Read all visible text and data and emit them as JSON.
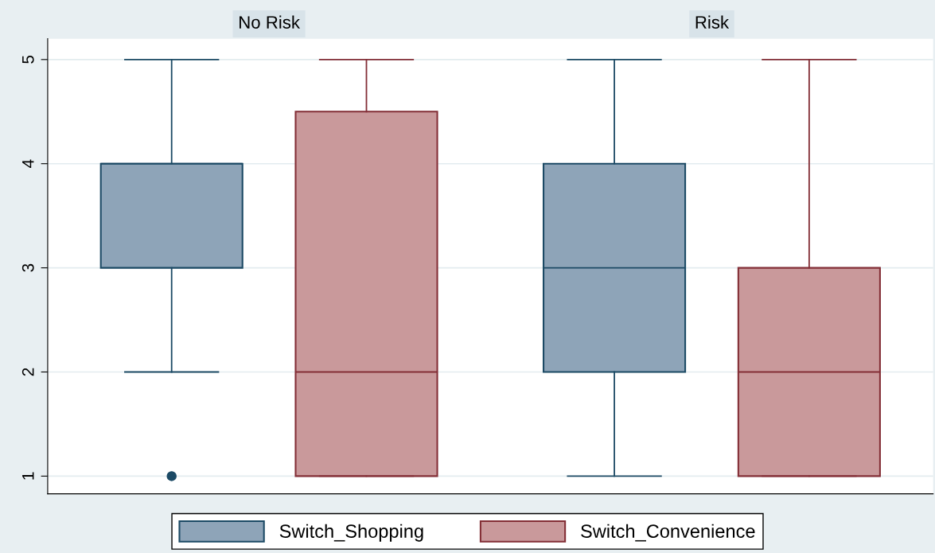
{
  "chart_data": {
    "type": "box",
    "categories": [
      "No Risk",
      "Risk"
    ],
    "ylim": [
      0.83,
      5.2
    ],
    "yticks": [
      1,
      2,
      3,
      4,
      5
    ],
    "grid": "y",
    "legend": "bottom",
    "series": [
      {
        "name": "Switch_Shopping",
        "color": "#8ea4b8",
        "boxes": [
          {
            "low": 2,
            "q1": 3,
            "median": 4,
            "q3": 4,
            "high": 5,
            "outliers": [
              1
            ]
          },
          {
            "low": 1,
            "q1": 2,
            "median": 3,
            "q3": 4,
            "high": 5
          }
        ]
      },
      {
        "name": "Switch_Convenience",
        "color": "#c9999b",
        "boxes": [
          {
            "low": 1,
            "q1": 1,
            "median": 2,
            "q3": 4.5,
            "high": 5
          },
          {
            "low": 1,
            "q1": 1,
            "median": 2,
            "q3": 3,
            "high": 5
          }
        ]
      }
    ]
  }
}
